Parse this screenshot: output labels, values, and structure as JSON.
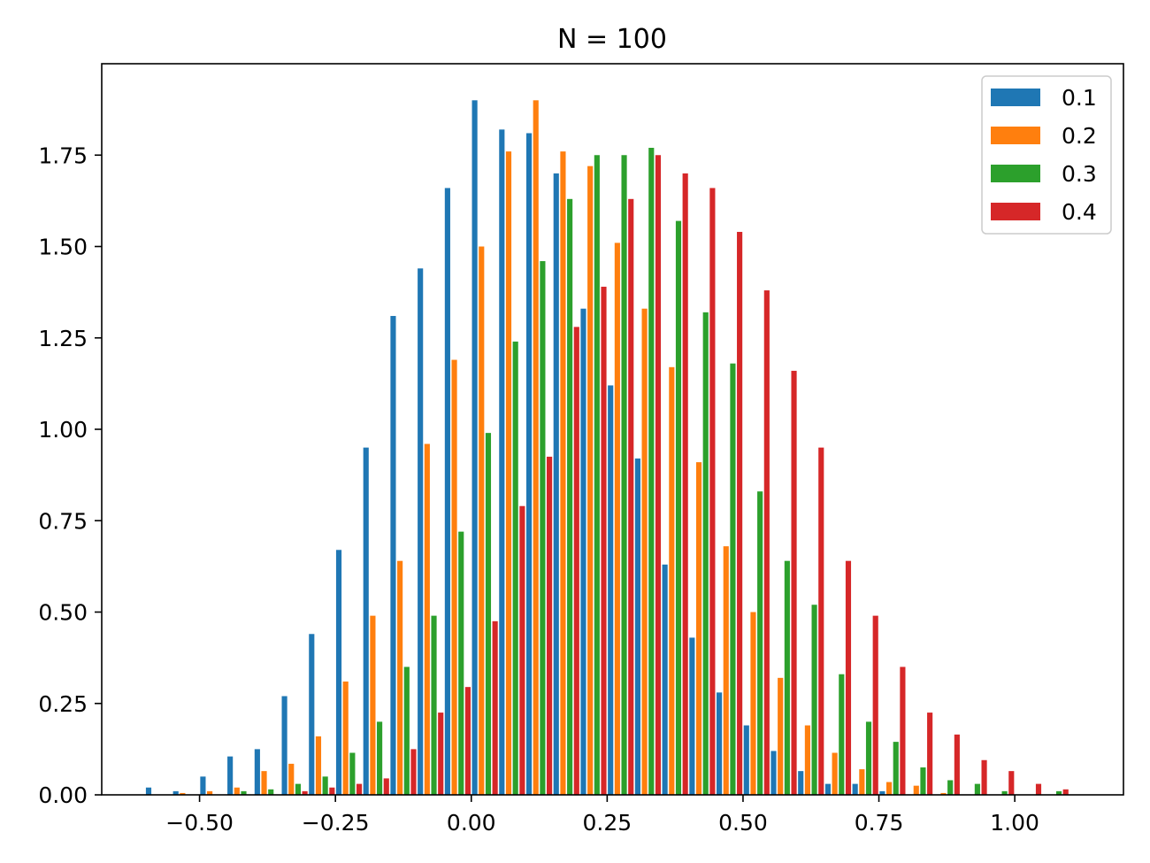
{
  "chart_data": {
    "type": "bar",
    "title": "N = 100",
    "xlabel": "",
    "ylabel": "",
    "xlim": [
      -0.68,
      1.2
    ],
    "ylim": [
      0,
      2.0
    ],
    "x_ticks": [
      -0.5,
      -0.25,
      0.0,
      0.25,
      0.5,
      0.75,
      1.0
    ],
    "x_tick_labels": [
      "−0.50",
      "−0.25",
      "0.00",
      "0.25",
      "0.50",
      "0.75",
      "1.00"
    ],
    "y_ticks": [
      0.0,
      0.25,
      0.5,
      0.75,
      1.0,
      1.25,
      1.5,
      1.75
    ],
    "y_tick_labels": [
      "0.00",
      "0.25",
      "0.50",
      "0.75",
      "1.00",
      "1.25",
      "1.50",
      "1.75"
    ],
    "grid": false,
    "legend_position": "top-right",
    "bin_starts": [
      -0.6,
      -0.55,
      -0.5,
      -0.45,
      -0.4,
      -0.35,
      -0.3,
      -0.25,
      -0.2,
      -0.15,
      -0.1,
      -0.05,
      0.0,
      0.05,
      0.1,
      0.15,
      0.2,
      0.25,
      0.3,
      0.35,
      0.4,
      0.45,
      0.5,
      0.55,
      0.6,
      0.65,
      0.7,
      0.75,
      0.8,
      0.85,
      0.9,
      0.95,
      1.0,
      1.05,
      1.1
    ],
    "bin_width": 0.05,
    "series": [
      {
        "name": "0.1",
        "color": "#1f77b4",
        "values": [
          0.02,
          0.01,
          0.05,
          0.105,
          0.125,
          0.27,
          0.44,
          0.67,
          0.95,
          1.31,
          1.44,
          1.66,
          1.9,
          1.82,
          1.81,
          1.7,
          1.33,
          1.12,
          0.92,
          0.63,
          0.43,
          0.28,
          0.19,
          0.12,
          0.065,
          0.03,
          0.03,
          0.01,
          0.0,
          0.0,
          0.0,
          0.0,
          0.0,
          0.0,
          0.0
        ]
      },
      {
        "name": "0.2",
        "color": "#ff7f0e",
        "values": [
          0.0,
          0.005,
          0.01,
          0.02,
          0.065,
          0.085,
          0.16,
          0.31,
          0.49,
          0.64,
          0.96,
          1.19,
          1.5,
          1.76,
          1.9,
          1.76,
          1.72,
          1.51,
          1.33,
          1.17,
          0.91,
          0.68,
          0.5,
          0.32,
          0.19,
          0.115,
          0.07,
          0.035,
          0.025,
          0.005,
          0.0,
          0.0,
          0.0,
          0.0,
          0.0
        ]
      },
      {
        "name": "0.3",
        "color": "#2ca02c",
        "values": [
          0.0,
          0.0,
          0.0,
          0.01,
          0.015,
          0.03,
          0.05,
          0.115,
          0.2,
          0.35,
          0.49,
          0.72,
          0.99,
          1.24,
          1.46,
          1.63,
          1.75,
          1.75,
          1.77,
          1.57,
          1.32,
          1.18,
          0.83,
          0.64,
          0.52,
          0.33,
          0.2,
          0.145,
          0.075,
          0.04,
          0.03,
          0.01,
          0.0,
          0.01,
          0.0
        ]
      },
      {
        "name": "0.4",
        "color": "#d62728",
        "values": [
          0.0,
          0.0,
          0.0,
          0.0,
          0.0,
          0.01,
          0.02,
          0.03,
          0.045,
          0.125,
          0.225,
          0.295,
          0.475,
          0.79,
          0.925,
          1.28,
          1.39,
          1.63,
          1.75,
          1.7,
          1.66,
          1.54,
          1.38,
          1.16,
          0.95,
          0.64,
          0.49,
          0.35,
          0.225,
          0.165,
          0.095,
          0.065,
          0.03,
          0.015,
          0.0
        ]
      }
    ]
  }
}
